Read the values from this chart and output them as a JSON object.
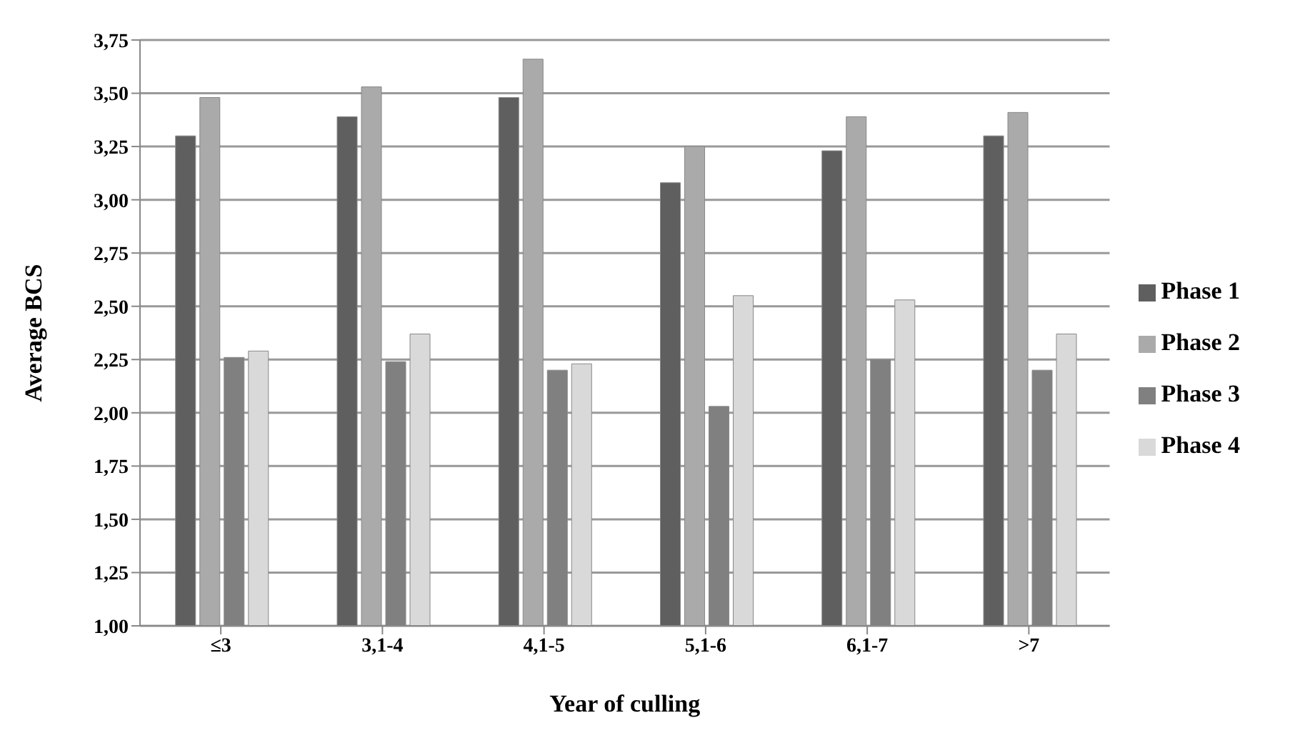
{
  "chart_data": {
    "type": "bar",
    "xlabel": "Year of culling",
    "ylabel": "Average  BCS",
    "categories": [
      "≤3",
      "3,1-4",
      "4,1-5",
      "5,1-6",
      "6,1-7",
      ">7"
    ],
    "series": [
      {
        "name": "Phase 1",
        "color": "#5f5f5f",
        "values": [
          3.3,
          3.39,
          3.48,
          3.08,
          3.23,
          3.3
        ]
      },
      {
        "name": "Phase 2",
        "color": "#aaaaaa",
        "values": [
          3.48,
          3.53,
          3.66,
          3.25,
          3.39,
          3.41
        ]
      },
      {
        "name": "Phase 3",
        "color": "#808080",
        "values": [
          2.26,
          2.24,
          2.2,
          2.03,
          2.25,
          2.2
        ]
      },
      {
        "name": "Phase 4",
        "color": "#d9d9d9",
        "values": [
          2.29,
          2.37,
          2.23,
          2.55,
          2.53,
          2.37
        ]
      }
    ],
    "ylim": [
      1,
      3.75
    ],
    "yticks": [
      {
        "value": 1,
        "label": "1,00"
      },
      {
        "value": 1.25,
        "label": "1,25"
      },
      {
        "value": 1.5,
        "label": "1,50"
      },
      {
        "value": 1.75,
        "label": "1,75"
      },
      {
        "value": 2,
        "label": "2,00"
      },
      {
        "value": 2.25,
        "label": "2,25"
      },
      {
        "value": 2.5,
        "label": "2,50"
      },
      {
        "value": 2.75,
        "label": "2,75"
      },
      {
        "value": 3,
        "label": "3,00"
      },
      {
        "value": 3.25,
        "label": "3,25"
      },
      {
        "value": 3.5,
        "label": "3,50"
      },
      {
        "value": 3.75,
        "label": "3,75"
      }
    ],
    "grid": "y",
    "legend": "right"
  }
}
